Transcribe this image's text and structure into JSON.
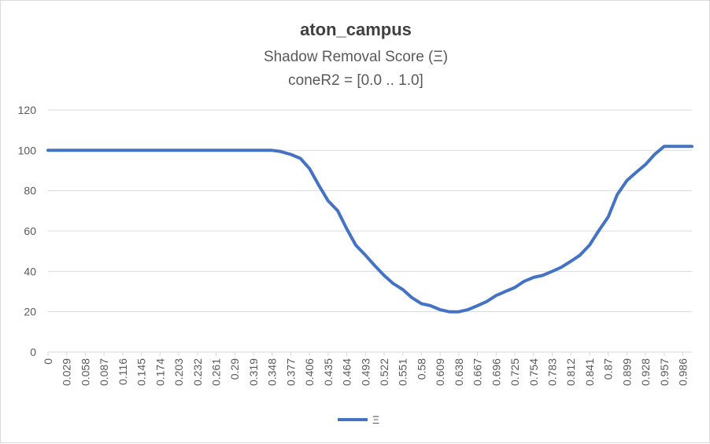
{
  "chart_data": {
    "type": "line",
    "title": "aton_campus",
    "subtitle_lines": [
      "Shadow Removal Score (Ξ)",
      "coneR2 = [0.0 .. 1.0]"
    ],
    "xlabel": "",
    "ylabel": "",
    "ylim": [
      0,
      120
    ],
    "y_ticks": [
      0,
      20,
      40,
      60,
      80,
      100,
      120
    ],
    "x_tick_labels": [
      "0",
      "0.029",
      "0.058",
      "0.087",
      "0.116",
      "0.145",
      "0.174",
      "0.203",
      "0.232",
      "0.261",
      "0.29",
      "0.319",
      "0.348",
      "0.377",
      "0.406",
      "0.435",
      "0.464",
      "0.493",
      "0.522",
      "0.551",
      "0.58",
      "0.609",
      "0.638",
      "0.667",
      "0.696",
      "0.725",
      "0.754",
      "0.783",
      "0.812",
      "0.841",
      "0.87",
      "0.899",
      "0.928",
      "0.957",
      "0.986"
    ],
    "grid": true,
    "legend_position": "bottom",
    "series": [
      {
        "name": "Ξ",
        "color": "#4472C4",
        "x": [
          0,
          0.029,
          0.058,
          0.087,
          0.116,
          0.145,
          0.174,
          0.203,
          0.232,
          0.261,
          0.29,
          0.319,
          0.348,
          0.36,
          0.377,
          0.392,
          0.406,
          0.42,
          0.435,
          0.45,
          0.464,
          0.478,
          0.493,
          0.507,
          0.522,
          0.536,
          0.551,
          0.565,
          0.58,
          0.594,
          0.609,
          0.623,
          0.638,
          0.652,
          0.667,
          0.681,
          0.696,
          0.71,
          0.725,
          0.739,
          0.754,
          0.768,
          0.783,
          0.797,
          0.812,
          0.826,
          0.841,
          0.855,
          0.87,
          0.884,
          0.899,
          0.913,
          0.928,
          0.942,
          0.957,
          0.971,
          0.986,
          1.0
        ],
        "values": [
          100,
          100,
          100,
          100,
          100,
          100,
          100,
          100,
          100,
          100,
          100,
          100,
          100,
          99.5,
          98,
          96,
          91,
          83,
          75,
          70,
          61,
          53,
          48,
          43,
          38,
          34,
          31,
          27,
          24,
          23,
          21,
          20,
          20,
          21,
          23,
          25,
          28,
          30,
          32,
          35,
          37,
          38,
          40,
          42,
          45,
          48,
          53,
          60,
          67,
          78,
          85,
          89,
          93,
          98,
          102,
          102,
          102,
          102
        ]
      }
    ]
  }
}
